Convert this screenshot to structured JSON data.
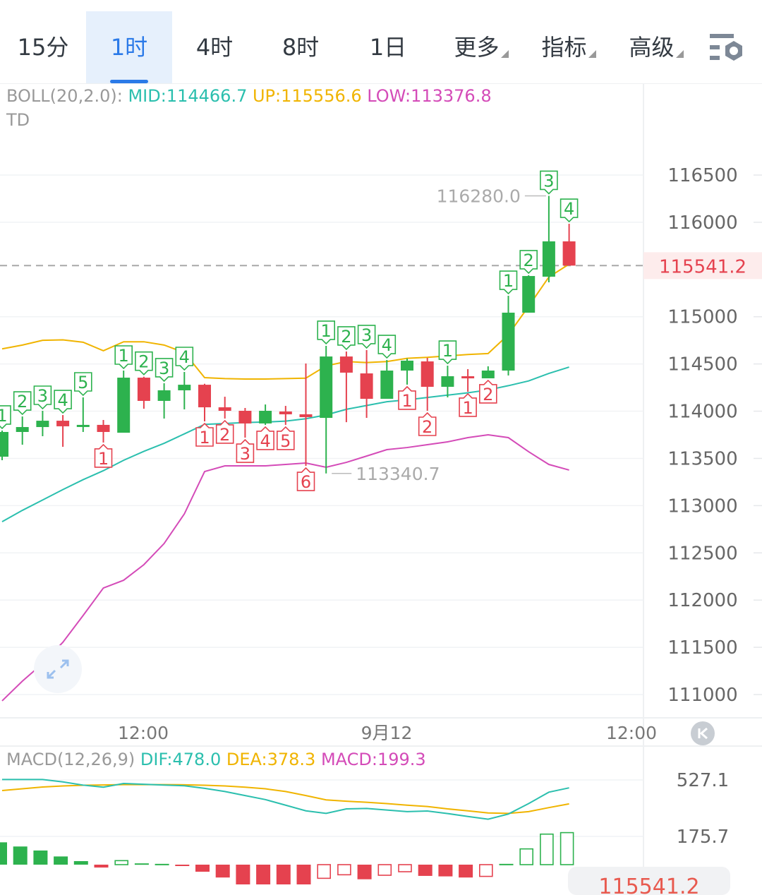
{
  "tabs": [
    {
      "label": "15分"
    },
    {
      "label": "1时",
      "active": true
    },
    {
      "label": "4时"
    },
    {
      "label": "8时"
    },
    {
      "label": "1日"
    },
    {
      "label": "更多",
      "dropdown": true
    },
    {
      "label": "指标",
      "dropdown": true
    },
    {
      "label": "高级",
      "dropdown": true
    }
  ],
  "settings_icon": "chart-settings-icon",
  "boll_legend": {
    "name": "BOLL(20,2.0):",
    "mid": "MID:114466.7",
    "up": "UP:115556.6",
    "low": "LOW:113376.8"
  },
  "td_label": "TD",
  "macd_legend": {
    "name": "MACD(12,26,9)",
    "dif": "DIF:478.0",
    "dea": "DEA:378.3",
    "macd": "MACD:199.3"
  },
  "colors": {
    "up": "#2db24e",
    "down": "#e5424f",
    "mid": "#2bbfae",
    "upper": "#f0b400",
    "lower": "#d44bb8",
    "accent": "#2b7ae8"
  },
  "price_axis": [
    "116500",
    "116000",
    "115000",
    "114500",
    "114000",
    "113500",
    "113000",
    "112500",
    "112000",
    "111500",
    "111000"
  ],
  "last_price": "115541.2",
  "x_axis": [
    "12:00",
    "9月12",
    "12:00"
  ],
  "high_label": "116280.0",
  "low_label": "113340.7",
  "macd_axis": [
    "527.1",
    "175.7"
  ],
  "bottom_badge": "115541.2",
  "chart_data": [
    {
      "type": "candlestick",
      "ylim": [
        111000,
        116500
      ],
      "yticks": [
        111000,
        111500,
        112000,
        112500,
        113000,
        113500,
        114000,
        114500,
        115000,
        116000,
        116500
      ],
      "xticks": [
        "12:00",
        "9月12",
        "12:00"
      ],
      "last_price": 115541.2,
      "candles": [
        [
          113518,
          113795,
          113481,
          113780
        ],
        [
          113780,
          113944,
          113645,
          113832
        ],
        [
          113832,
          114004,
          113735,
          113899
        ],
        [
          113899,
          113959,
          113623,
          113840
        ],
        [
          113847,
          114146,
          113780,
          113855
        ],
        [
          113855,
          113907,
          113668,
          113780
        ],
        [
          113772,
          114430,
          113772,
          114355
        ],
        [
          114355,
          114365,
          114026,
          114109
        ],
        [
          114109,
          114296,
          113922,
          114221
        ],
        [
          114221,
          114415,
          114019,
          114280
        ],
        [
          114280,
          114290,
          113892,
          114041
        ],
        [
          114041,
          114153,
          113922,
          114004
        ],
        [
          114004,
          114034,
          113720,
          113870
        ],
        [
          113870,
          114071,
          113855,
          114004
        ],
        [
          113997,
          114056,
          113855,
          113967
        ],
        [
          113967,
          114505,
          113421,
          113937
        ],
        [
          113929,
          114692,
          113340.7,
          114579
        ],
        [
          114579,
          114632,
          113884,
          114408
        ],
        [
          114400,
          114647,
          113929,
          114131
        ],
        [
          114131,
          114542,
          114131,
          114430
        ],
        [
          114430,
          114557,
          114281,
          114535
        ],
        [
          114527,
          114565,
          114004,
          114258
        ],
        [
          114258,
          114482,
          114146,
          114370
        ],
        [
          114370,
          114445,
          114206,
          114348
        ],
        [
          114348,
          114475,
          114348,
          114430
        ],
        [
          114430,
          115222,
          114378,
          115043
        ],
        [
          115043,
          115439,
          115043,
          115431
        ],
        [
          115424,
          116280.0,
          115364,
          115798
        ],
        [
          115798,
          115984,
          115541.2,
          115541.2
        ]
      ],
      "boll_upper": [
        114660,
        114700,
        114750,
        114755,
        114730,
        114640,
        114735,
        114735,
        114700,
        114620,
        114355,
        114345,
        114340,
        114340,
        114345,
        114350,
        114480,
        114525,
        114515,
        114525,
        114560,
        114570,
        114585,
        114600,
        114610,
        114810,
        115110,
        115420,
        115556.6
      ],
      "boll_mid": [
        112830,
        112950,
        113060,
        113170,
        113275,
        113370,
        113480,
        113575,
        113660,
        113760,
        113860,
        113870,
        113880,
        113885,
        113895,
        113920,
        113960,
        114020,
        114060,
        114100,
        114120,
        114145,
        114170,
        114195,
        114225,
        114270,
        114320,
        114400,
        114466.7
      ],
      "boll_lower": [
        110933,
        111142,
        111329,
        111553,
        111837,
        112128,
        112210,
        112375,
        112599,
        112913,
        113361,
        113421,
        113421,
        113421,
        113436,
        113451,
        113406,
        113458,
        113525,
        113593,
        113615,
        113645,
        113675,
        113720,
        113750,
        113720,
        113571,
        113436,
        113376.8
      ],
      "td_up": {
        "0": "1",
        "1": "2",
        "2": "3",
        "3": "4",
        "4": "5",
        "6": "1",
        "7": "2",
        "8": "3",
        "9": "4",
        "16": "1",
        "17": "2",
        "18": "3",
        "19": "4",
        "22": "1",
        "25": "1",
        "26": "2",
        "27": "3",
        "28": "4"
      },
      "td_down": {
        "5": "1",
        "10": "1",
        "11": "2",
        "12": "3",
        "13": "4",
        "14": "5",
        "15": "6",
        "20": "1",
        "21": "2",
        "23": "1",
        "24": "2"
      }
    },
    {
      "type": "macd",
      "yticks": [
        527.1,
        175.7
      ],
      "dif": [
        530,
        530,
        530,
        515,
        495,
        482,
        505,
        500,
        495,
        491,
        475,
        455,
        430,
        405,
        370,
        335,
        319,
        347,
        350,
        340,
        330,
        334,
        318,
        300,
        283,
        315,
        380,
        451,
        478.0
      ],
      "dea": [
        461,
        472,
        483,
        490,
        494,
        496,
        498,
        498,
        498,
        497,
        494,
        490,
        482,
        472,
        455,
        430,
        403,
        395,
        388,
        380,
        370,
        362,
        347,
        335,
        322,
        319,
        330,
        355,
        378.3
      ],
      "hist": [
        139,
        113,
        88,
        51,
        22,
        -18,
        25,
        8,
        5,
        -5,
        -44,
        -80,
        -140,
        -150,
        -150,
        -140,
        -85,
        -63,
        -91,
        -66,
        -44,
        -70,
        -73,
        -80,
        -73,
        5,
        98,
        190,
        199.3
      ],
      "hollow": [
        false,
        false,
        false,
        false,
        false,
        false,
        true,
        false,
        false,
        false,
        false,
        false,
        false,
        false,
        false,
        false,
        true,
        true,
        false,
        true,
        true,
        false,
        false,
        false,
        true,
        false,
        true,
        true,
        true
      ]
    }
  ]
}
